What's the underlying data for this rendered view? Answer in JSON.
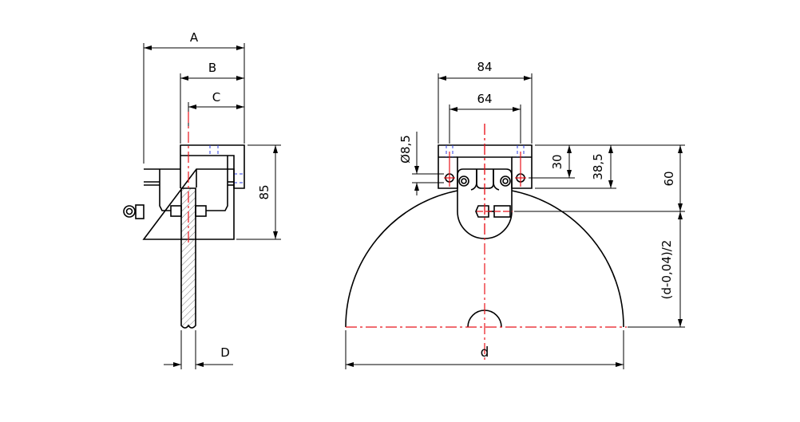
{
  "side_view": {
    "dimensions": {
      "A": "A",
      "B": "B",
      "C": "C",
      "D": "D",
      "height": "85"
    }
  },
  "front_view": {
    "dimensions": {
      "outer_width": "84",
      "hole_spacing": "64",
      "hole_diameter": "Ø8,5",
      "hole_height": "30",
      "block_height": "38,5",
      "axis_height": "60",
      "half_diameter": "(d-0,04)/2",
      "diameter": "d"
    }
  },
  "colors": {
    "outline": "#000000",
    "centerline": "#e8141c",
    "hidden_line": "#2b3fe0"
  }
}
